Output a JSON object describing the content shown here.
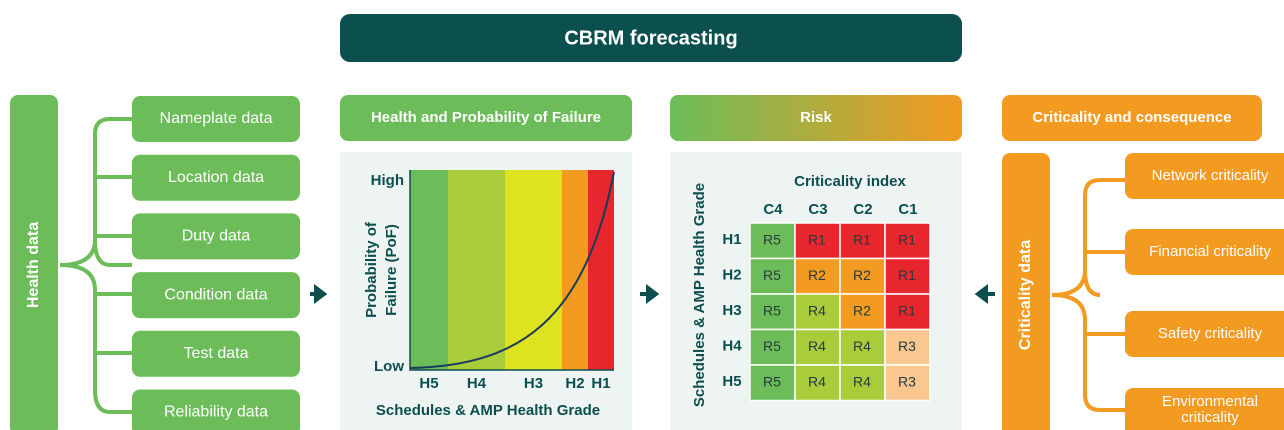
{
  "banner": "CBRM forecasting",
  "health": {
    "title": "Health data",
    "items": [
      "Nameplate data",
      "Location data",
      "Duty data",
      "Condition data",
      "Test data",
      "Reliability data"
    ]
  },
  "pof_panel": {
    "header": "Health and Probability of Failure",
    "y_title": [
      "Probability of",
      "Failure (PoF)"
    ],
    "y_high": "High",
    "y_low": "Low",
    "bands": [
      {
        "label": "H5",
        "color": "#6cbd5a"
      },
      {
        "label": "H4",
        "color": "#a8cc3a"
      },
      {
        "label": "H3",
        "color": "#dde31e"
      },
      {
        "label": "H2",
        "color": "#f39a21"
      },
      {
        "label": "H1",
        "color": "#e8262d"
      }
    ],
    "x_title": "Schedules & AMP Health Grade"
  },
  "risk_panel": {
    "header": "Risk",
    "y_title": "Schedules & AMP Health Grade",
    "x_title": "Criticality index",
    "columns": [
      "C4",
      "C3",
      "C2",
      "C1"
    ],
    "rows": [
      {
        "grade": "H1",
        "cells": [
          {
            "label": "R5",
            "color": "#6cbd5a"
          },
          {
            "label": "R1",
            "color": "#e8262d"
          },
          {
            "label": "R1",
            "color": "#e8262d"
          },
          {
            "label": "R1",
            "color": "#e8262d"
          }
        ]
      },
      {
        "grade": "H2",
        "cells": [
          {
            "label": "R5",
            "color": "#6cbd5a"
          },
          {
            "label": "R2",
            "color": "#f39a21"
          },
          {
            "label": "R2",
            "color": "#f39a21"
          },
          {
            "label": "R1",
            "color": "#e8262d"
          }
        ]
      },
      {
        "grade": "H3",
        "cells": [
          {
            "label": "R5",
            "color": "#6cbd5a"
          },
          {
            "label": "R4",
            "color": "#a8cc3a"
          },
          {
            "label": "R2",
            "color": "#f39a21"
          },
          {
            "label": "R1",
            "color": "#e8262d"
          }
        ]
      },
      {
        "grade": "H4",
        "cells": [
          {
            "label": "R5",
            "color": "#6cbd5a"
          },
          {
            "label": "R4",
            "color": "#a8cc3a"
          },
          {
            "label": "R4",
            "color": "#a8cc3a"
          },
          {
            "label": "R3",
            "color": "#f9c78f"
          }
        ]
      },
      {
        "grade": "H5",
        "cells": [
          {
            "label": "R5",
            "color": "#6cbd5a"
          },
          {
            "label": "R4",
            "color": "#a8cc3a"
          },
          {
            "label": "R4",
            "color": "#a8cc3a"
          },
          {
            "label": "R3",
            "color": "#f9c78f"
          }
        ]
      }
    ]
  },
  "criticality": {
    "header": "Criticality and consequence",
    "title": "Criticality data",
    "items": [
      [
        "Network criticality"
      ],
      [
        "Financial criticality"
      ],
      [
        "Safety criticality"
      ],
      [
        "Environmental",
        "criticality"
      ]
    ]
  }
}
